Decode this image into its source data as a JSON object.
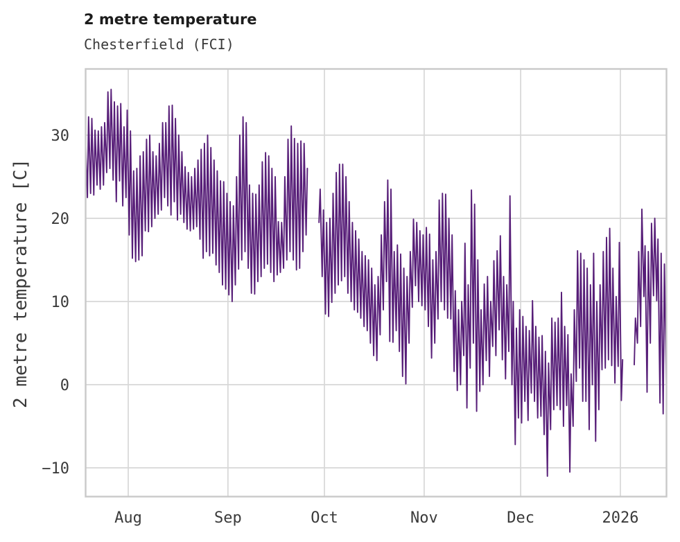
{
  "chart_data": {
    "type": "line",
    "title": "2 metre temperature",
    "subtitle": "Chesterfield (FCI)",
    "ylabel": "2 metre temperature [C]",
    "line_color": "#571e78",
    "background_color": "#ffffff",
    "grid_color": "#d7d7d7",
    "grid": true,
    "legend": "none",
    "ylim": [
      -13.5,
      37.9
    ],
    "y_ticks": [
      {
        "value": 30,
        "label": "30"
      },
      {
        "value": 20,
        "label": "20"
      },
      {
        "value": 10,
        "label": "10"
      },
      {
        "value": 0,
        "label": "0"
      },
      {
        "value": -10,
        "label": "−10"
      }
    ],
    "x_start_date": "2025-07-18",
    "x_end_date": "2026-01-15",
    "x_ticks": [
      {
        "day": 14,
        "label": "Aug"
      },
      {
        "day": 45,
        "label": "Sep"
      },
      {
        "day": 75,
        "label": "Oct"
      },
      {
        "day": 106,
        "label": "Nov"
      },
      {
        "day": 136,
        "label": "Dec"
      },
      {
        "day": 167,
        "label": "2026"
      }
    ],
    "data_gaps": [
      "2025-09-26/2025-09-28",
      "2026-01-02/2026-01-04"
    ],
    "daily_min_max": [
      [
        21.9,
        29.5
      ],
      [
        22.5,
        32.2
      ],
      [
        23,
        32
      ],
      [
        22.8,
        30.6
      ],
      [
        24,
        30.5
      ],
      [
        23.5,
        31
      ],
      [
        24,
        31.5
      ],
      [
        25.5,
        35.2
      ],
      [
        26,
        35.5
      ],
      [
        24.6,
        34
      ],
      [
        22,
        33.5
      ],
      [
        24.5,
        33.8
      ],
      [
        21.5,
        31
      ],
      [
        22.5,
        33
      ],
      [
        18,
        30.5
      ],
      [
        15.2,
        25.7
      ],
      [
        14.8,
        26
      ],
      [
        15,
        27.5
      ],
      [
        15.5,
        28
      ],
      [
        18.5,
        29.5
      ],
      [
        18.4,
        30
      ],
      [
        19,
        28
      ],
      [
        20,
        27.5
      ],
      [
        20.5,
        29
      ],
      [
        21,
        31.5
      ],
      [
        22.5,
        31.5
      ],
      [
        21.5,
        33.5
      ],
      [
        20.4,
        33.6
      ],
      [
        22,
        32
      ],
      [
        19.8,
        30
      ],
      [
        20.5,
        28
      ],
      [
        19.5,
        26.2
      ],
      [
        18.7,
        25.5
      ],
      [
        18.5,
        25
      ],
      [
        18.7,
        26
      ],
      [
        19,
        27
      ],
      [
        17.5,
        28.3
      ],
      [
        15.2,
        29
      ],
      [
        16,
        30
      ],
      [
        15.5,
        28.5
      ],
      [
        15.8,
        27
      ],
      [
        14.4,
        25.7
      ],
      [
        13.5,
        24.5
      ],
      [
        12,
        24.4
      ],
      [
        11.5,
        23
      ],
      [
        10.8,
        22
      ],
      [
        10,
        21.5
      ],
      [
        12,
        25
      ],
      [
        13.9,
        30
      ],
      [
        15,
        32.2
      ],
      [
        16,
        31.5
      ],
      [
        14,
        24
      ],
      [
        11,
        23
      ],
      [
        10.9,
        22.9
      ],
      [
        12.4,
        24
      ],
      [
        13,
        26.8
      ],
      [
        14,
        27.9
      ],
      [
        14.5,
        27.5
      ],
      [
        13.5,
        26
      ],
      [
        12.4,
        25
      ],
      [
        13.2,
        19.6
      ],
      [
        13.5,
        19.5
      ],
      [
        14,
        25
      ],
      [
        15,
        29.5
      ],
      [
        16,
        31.1
      ],
      [
        15,
        29.6
      ],
      [
        13.8,
        29
      ],
      [
        14,
        29.3
      ],
      [
        16,
        29
      ],
      [
        18,
        26
      ],
      null,
      null,
      null,
      [
        19.5,
        23.5
      ],
      [
        13,
        21
      ],
      [
        8.5,
        19.5
      ],
      [
        8.2,
        20
      ],
      [
        9.9,
        23
      ],
      [
        11,
        25.5
      ],
      [
        12,
        26.5
      ],
      [
        12.5,
        26.5
      ],
      [
        13,
        25
      ],
      [
        11,
        22
      ],
      [
        10,
        19.5
      ],
      [
        9,
        18.5
      ],
      [
        8.7,
        17.5
      ],
      [
        8,
        16
      ],
      [
        7,
        15.5
      ],
      [
        6.5,
        15
      ],
      [
        5,
        14
      ],
      [
        3.5,
        12
      ],
      [
        2.9,
        13
      ],
      [
        6,
        18
      ],
      [
        9,
        22
      ],
      [
        12.4,
        24.6
      ],
      [
        5.2,
        23.5
      ],
      [
        5.1,
        16
      ],
      [
        6.5,
        16.8
      ],
      [
        4,
        15.7
      ],
      [
        1,
        14
      ],
      [
        0.1,
        13
      ],
      [
        5,
        16
      ],
      [
        9.3,
        19.9
      ],
      [
        11.9,
        19.5
      ],
      [
        10,
        18.5
      ],
      [
        9.5,
        18
      ],
      [
        9,
        18.9
      ],
      [
        7,
        18.1
      ],
      [
        3.2,
        15
      ],
      [
        5,
        16
      ],
      [
        7.9,
        22.2
      ],
      [
        10,
        23
      ],
      [
        9,
        22.9
      ],
      [
        8,
        20
      ],
      [
        7.9,
        18
      ],
      [
        1.6,
        11.3
      ],
      [
        -0.7,
        9
      ],
      [
        0,
        10
      ],
      [
        3.5,
        17
      ],
      [
        -2.8,
        12
      ],
      [
        2,
        23.4
      ],
      [
        5,
        21.7
      ],
      [
        -3.2,
        15
      ],
      [
        -0.8,
        9
      ],
      [
        0,
        12.1
      ],
      [
        2.9,
        13
      ],
      [
        1,
        10
      ],
      [
        4.6,
        14.9
      ],
      [
        3.5,
        16.1
      ],
      [
        6.6,
        17.9
      ],
      [
        3,
        13
      ],
      [
        0.7,
        12
      ],
      [
        4,
        22.7
      ],
      [
        0,
        10
      ],
      [
        -7.2,
        6.8
      ],
      [
        -4,
        9
      ],
      [
        -4.6,
        8.2
      ],
      [
        -2,
        7
      ],
      [
        -4.3,
        6.5
      ],
      [
        -1,
        10.1
      ],
      [
        -2,
        7
      ],
      [
        -4,
        5.7
      ],
      [
        -3.8,
        5.9
      ],
      [
        -6,
        4
      ],
      [
        -11,
        2.6
      ],
      [
        -5.4,
        8
      ],
      [
        -3,
        7.5
      ],
      [
        -2.5,
        8
      ],
      [
        -3,
        11.1
      ],
      [
        -5,
        7
      ],
      [
        -2.5,
        6
      ],
      [
        -10.5,
        1.3
      ],
      [
        -5,
        9
      ],
      [
        0.4,
        16.1
      ],
      [
        2,
        15.8
      ],
      [
        -2,
        15
      ],
      [
        -2,
        14
      ],
      [
        -5.4,
        12
      ],
      [
        0,
        15.8
      ],
      [
        -6.8,
        10
      ],
      [
        -3,
        12
      ],
      [
        1.8,
        16
      ],
      [
        2,
        17.7
      ],
      [
        3,
        18.8
      ],
      [
        2.3,
        14
      ],
      [
        0.2,
        10.6
      ],
      [
        2.2,
        17.1
      ],
      [
        -1.9,
        3
      ],
      null,
      null,
      null,
      [
        2.4,
        8
      ],
      [
        5,
        16
      ],
      [
        7,
        21.1
      ],
      [
        10.6,
        16.7
      ],
      [
        -0.9,
        16
      ],
      [
        5,
        19.4
      ],
      [
        10.7,
        20
      ],
      [
        10.1,
        17.5
      ],
      [
        -2.2,
        15.8
      ],
      [
        -3.5,
        14.5
      ],
      [
        0,
        7.9
      ]
    ]
  }
}
